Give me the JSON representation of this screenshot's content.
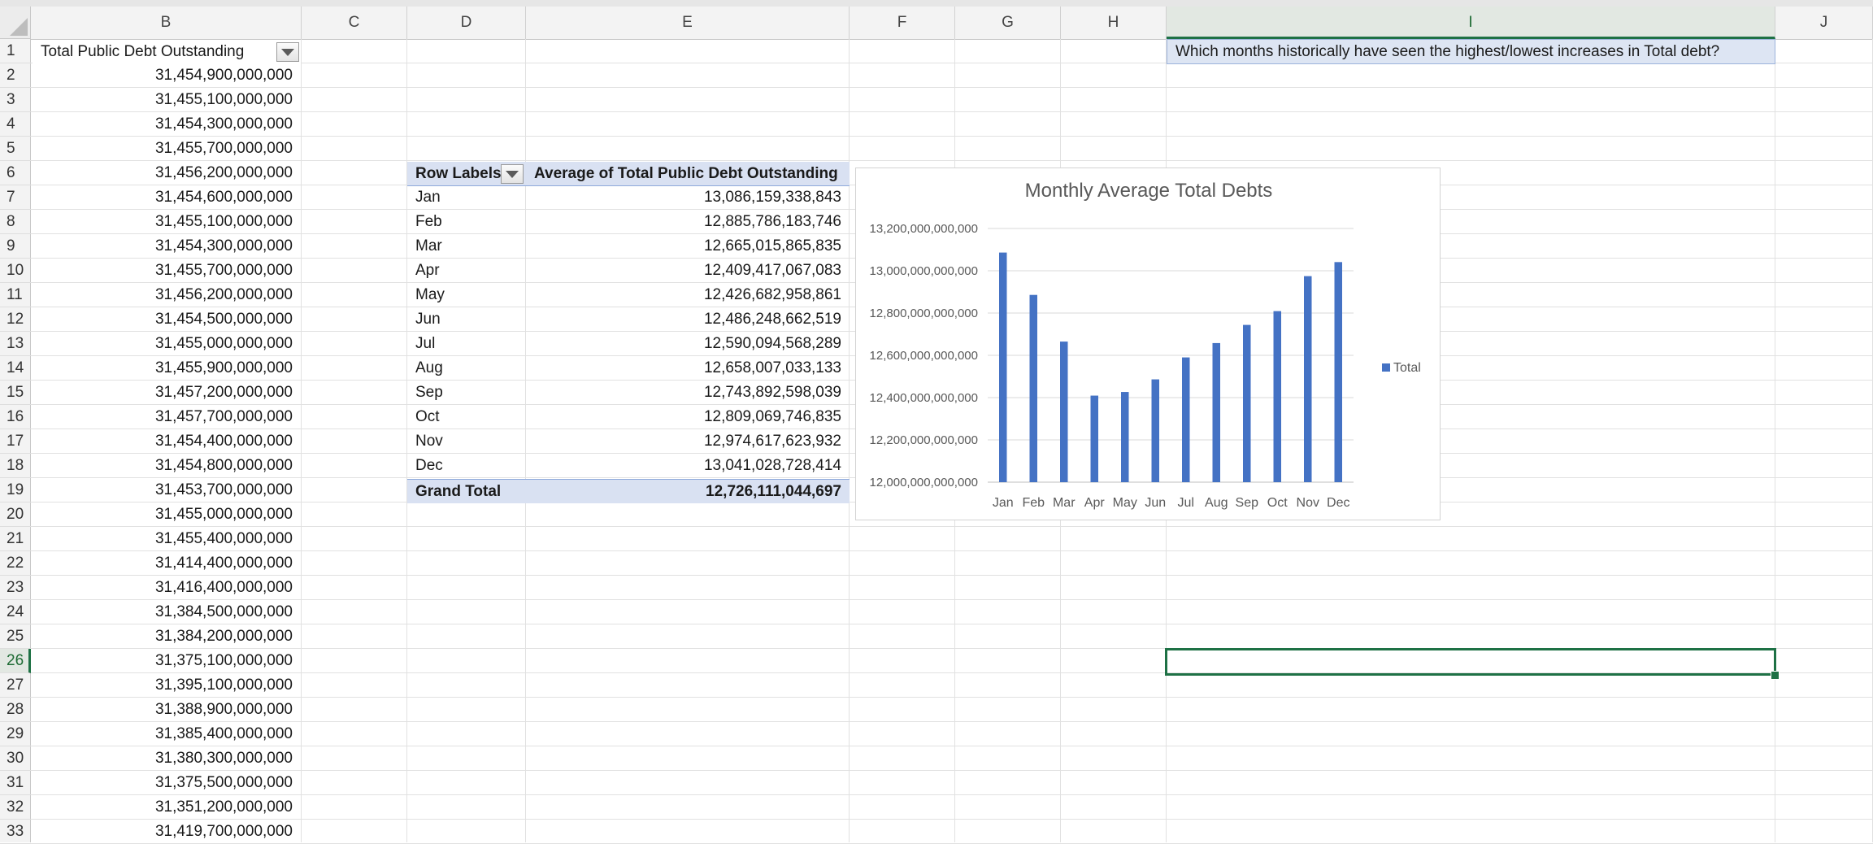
{
  "columns": [
    "B",
    "C",
    "D",
    "E",
    "F",
    "G",
    "H",
    "I",
    "J"
  ],
  "active_column": "I",
  "rows": [
    "1",
    "2",
    "3",
    "4",
    "5",
    "6",
    "7",
    "8",
    "9",
    "10",
    "11",
    "12",
    "13",
    "14",
    "15",
    "16",
    "17",
    "18",
    "19",
    "20",
    "21",
    "22",
    "23",
    "24",
    "25",
    "26",
    "27",
    "28",
    "29",
    "30",
    "31",
    "32",
    "33"
  ],
  "active_row": "26",
  "column_b": {
    "header": "Total Public Debt Outstanding",
    "values": [
      "31,454,900,000,000",
      "31,455,100,000,000",
      "31,454,300,000,000",
      "31,455,700,000,000",
      "31,456,200,000,000",
      "31,454,600,000,000",
      "31,455,100,000,000",
      "31,454,300,000,000",
      "31,455,700,000,000",
      "31,456,200,000,000",
      "31,454,500,000,000",
      "31,455,000,000,000",
      "31,455,900,000,000",
      "31,457,200,000,000",
      "31,457,700,000,000",
      "31,454,400,000,000",
      "31,454,800,000,000",
      "31,453,700,000,000",
      "31,455,000,000,000",
      "31,455,400,000,000",
      "31,414,400,000,000",
      "31,416,400,000,000",
      "31,384,500,000,000",
      "31,384,200,000,000",
      "31,375,100,000,000",
      "31,395,100,000,000",
      "31,388,900,000,000",
      "31,385,400,000,000",
      "31,380,300,000,000",
      "31,375,500,000,000",
      "31,351,200,000,000",
      "31,419,700,000,000"
    ]
  },
  "pivot": {
    "row_labels_header": "Row Labels",
    "value_header": "Average of Total Public Debt Outstanding",
    "rows": [
      {
        "label": "Jan",
        "value": "13,086,159,338,843"
      },
      {
        "label": "Feb",
        "value": "12,885,786,183,746"
      },
      {
        "label": "Mar",
        "value": "12,665,015,865,835"
      },
      {
        "label": "Apr",
        "value": "12,409,417,067,083"
      },
      {
        "label": "May",
        "value": "12,426,682,958,861"
      },
      {
        "label": "Jun",
        "value": "12,486,248,662,519"
      },
      {
        "label": "Jul",
        "value": "12,590,094,568,289"
      },
      {
        "label": "Aug",
        "value": "12,658,007,033,133"
      },
      {
        "label": "Sep",
        "value": "12,743,892,598,039"
      },
      {
        "label": "Oct",
        "value": "12,809,069,746,835"
      },
      {
        "label": "Nov",
        "value": "12,974,617,623,932"
      },
      {
        "label": "Dec",
        "value": "13,041,028,728,414"
      }
    ],
    "grand_total_label": "Grand Total",
    "grand_total_value": "12,726,111,044,697"
  },
  "question": "Which months historically have seen the highest/lowest increases in Total debt?",
  "colors": {
    "bar": "#4472c4",
    "pivot_header": "#d9e1f2",
    "selection": "#1e7145"
  },
  "chart_data": {
    "type": "bar",
    "title": "Monthly Average Total Debts",
    "categories": [
      "Jan",
      "Feb",
      "Mar",
      "Apr",
      "May",
      "Jun",
      "Jul",
      "Aug",
      "Sep",
      "Oct",
      "Nov",
      "Dec"
    ],
    "series": [
      {
        "name": "Total",
        "values": [
          13086159338843,
          12885786183746,
          12665015865835,
          12409417067083,
          12426682958861,
          12486248662519,
          12590094568289,
          12658007033133,
          12743892598039,
          12809069746835,
          12974617623932,
          13041028728414
        ]
      }
    ],
    "ylim": [
      12000000000000,
      13200000000000
    ],
    "yticks": [
      12000000000000,
      12200000000000,
      12400000000000,
      12600000000000,
      12800000000000,
      13000000000000,
      13200000000000
    ],
    "ytick_labels": [
      "12,000,000,000,000",
      "12,200,000,000,000",
      "12,400,000,000,000",
      "12,600,000,000,000",
      "12,800,000,000,000",
      "13,000,000,000,000",
      "13,200,000,000,000"
    ],
    "legend": "right",
    "grid": true
  }
}
